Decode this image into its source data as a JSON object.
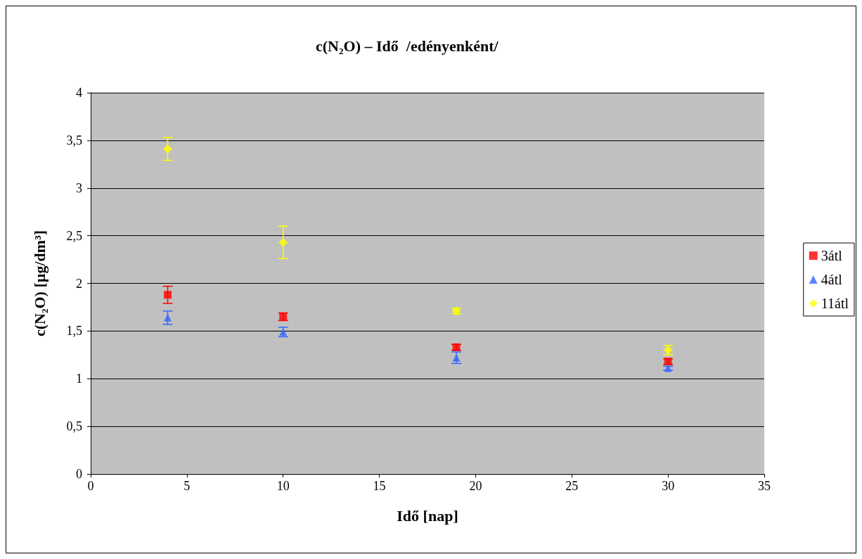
{
  "chart_data": {
    "type": "scatter",
    "title": "c(N₂O) – Idő  /edényenként/",
    "xlabel": "Idő [nap]",
    "ylabel": "c(N₂O) [µg/dm³]",
    "x": [
      4,
      10,
      19,
      30
    ],
    "series": [
      {
        "name": "3átl",
        "color": "#ff0000",
        "marker": "square",
        "values": [
          1.88,
          1.65,
          1.33,
          1.18
        ],
        "errors": [
          0.09,
          0.04,
          0.03,
          0.03
        ]
      },
      {
        "name": "4átl",
        "color": "#3366ff",
        "marker": "triangle",
        "values": [
          1.64,
          1.49,
          1.22,
          1.11
        ],
        "errors": [
          0.07,
          0.05,
          0.06,
          0.02
        ]
      },
      {
        "name": "11átl",
        "color": "#ffff00",
        "marker": "diamond",
        "values": [
          3.41,
          2.43,
          1.71,
          1.3
        ],
        "errors": [
          0.12,
          0.17,
          0.03,
          0.05
        ]
      }
    ],
    "xlim": [
      0,
      35
    ],
    "xticks": [
      0,
      5,
      10,
      15,
      20,
      25,
      30,
      35
    ],
    "ylim": [
      0,
      4
    ],
    "yticks": [
      0,
      {
        "value": 0.5,
        "label": "0,5"
      },
      1,
      {
        "value": 1.5,
        "label": "1,5"
      },
      2,
      {
        "value": 2.5,
        "label": "2,5"
      },
      3,
      {
        "value": 3.5,
        "label": "3,5"
      },
      4
    ],
    "grid": "y",
    "legend": "right"
  }
}
